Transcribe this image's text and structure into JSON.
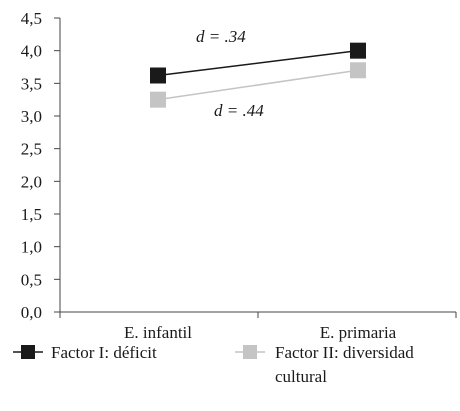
{
  "chart_data": {
    "type": "line",
    "categories": [
      "E. infantil",
      "E. primaria"
    ],
    "series": [
      {
        "name": "Factor I: déficit",
        "values": [
          3.62,
          4.0
        ],
        "color": "#1a1a1a"
      },
      {
        "name": "Factor II: diversidad cultural",
        "values": [
          3.25,
          3.7
        ],
        "color": "#c4c4c4"
      }
    ],
    "ylim": [
      0,
      4.5
    ],
    "yticks": [
      "0,0",
      "0,5",
      "1,0",
      "1,5",
      "2,0",
      "2,5",
      "3,0",
      "3,5",
      "4,0",
      "4,5"
    ],
    "annotations": [
      {
        "series": 0,
        "prefix": "d",
        "text": " = .34"
      },
      {
        "series": 1,
        "prefix": "d",
        "text": " = .44"
      }
    ],
    "legend": {
      "position": "bottom",
      "items": [
        {
          "label": "Factor I: déficit"
        },
        {
          "label_line1": "Factor II: diversidad",
          "label_line2": "cultural"
        }
      ]
    },
    "grid": false
  }
}
